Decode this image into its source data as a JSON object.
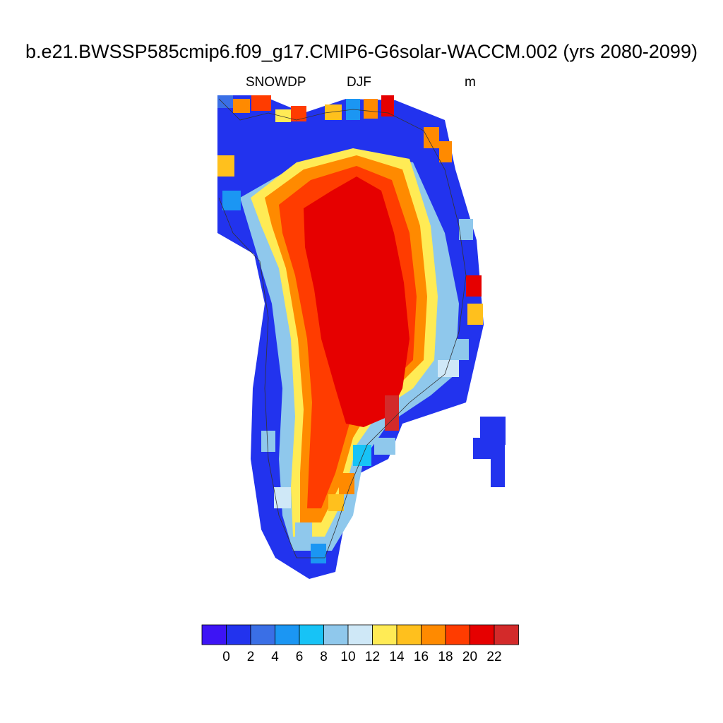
{
  "title": "b.e21.BWSSP585cmip6.f09_g17.CMIP6-G6solar-WACCM.002 (yrs 2080-2099)",
  "subtitle": {
    "variable": "SNOWDP",
    "season": "DJF",
    "units": "m"
  },
  "colorbar": {
    "colors": [
      "#3d14f5",
      "#2233ee",
      "#3a6fe6",
      "#1b96f3",
      "#17c3f6",
      "#8fc8ec",
      "#cfe8f7",
      "#ffeb55",
      "#ffc01d",
      "#ff8a00",
      "#ff3c00",
      "#e60000",
      "#d32a2a"
    ],
    "labels": [
      "0",
      "2",
      "4",
      "6",
      "8",
      "10",
      "12",
      "14",
      "16",
      "18",
      "20",
      "22"
    ]
  },
  "map_data": {
    "region": "Greenland",
    "colormap_levels": [
      0,
      2,
      4,
      6,
      8,
      10,
      12,
      14,
      16,
      18,
      20,
      22
    ]
  }
}
